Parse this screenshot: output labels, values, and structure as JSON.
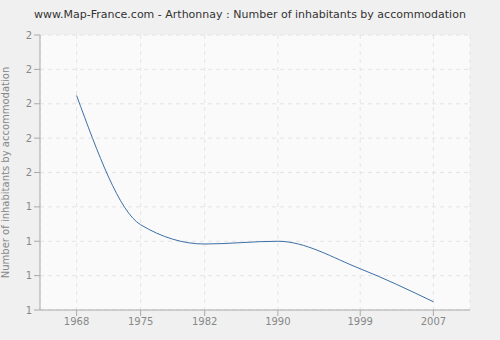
{
  "chart_data": {
    "type": "line",
    "title": "www.Map-France.com - Arthonnay : Number of inhabitants by accommodation",
    "y_label": "Number of inhabitants by accommodation",
    "x": [
      1968,
      1975,
      1982,
      1990,
      1999,
      2007
    ],
    "values": [
      1.78,
      1.31,
      1.24,
      1.25,
      1.15,
      1.03
    ],
    "color": "#3c6fa6",
    "xlim": [
      1964,
      2011
    ],
    "xticks": [
      1968,
      1975,
      1982,
      1990,
      1999,
      2007
    ],
    "ylim": [
      1,
      2
    ],
    "yticks": [
      {
        "value": 1,
        "label": "1"
      },
      {
        "value": 1.125,
        "label": "1"
      },
      {
        "value": 1.25,
        "label": "1"
      },
      {
        "value": 1.375,
        "label": "1"
      },
      {
        "value": 1.5,
        "label": "2"
      },
      {
        "value": 1.625,
        "label": "2"
      },
      {
        "value": 1.75,
        "label": "2"
      },
      {
        "value": 1.875,
        "label": "2"
      },
      {
        "value": 2,
        "label": "2"
      }
    ],
    "grid": true
  }
}
